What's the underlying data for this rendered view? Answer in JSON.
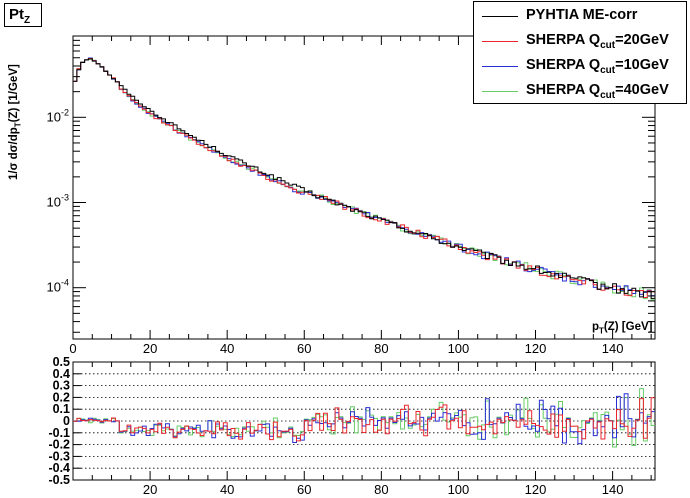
{
  "title": {
    "main": "Pt",
    "sub": "Z"
  },
  "colors": {
    "pythia": "#000000",
    "q20": "#e8262c",
    "q10": "#2a2fd4",
    "q40": "#66cc66"
  },
  "legend": [
    {
      "key": "pythia",
      "label": "PYHTIA ME-corr",
      "sub": "",
      "suffix": ""
    },
    {
      "key": "q20",
      "label": "SHERPA Q",
      "sub": "cut",
      "suffix": "=20GeV"
    },
    {
      "key": "q10",
      "label": "SHERPA Q",
      "sub": "cut",
      "suffix": "=10GeV"
    },
    {
      "key": "q40",
      "label": "SHERPA Q",
      "sub": "cut",
      "suffix": "=40GeV"
    }
  ],
  "labels": {
    "ylabel": "1/σ dσ/dp_T(Z) [1/GeV]",
    "xlabel": "p_T(Z) [GeV]"
  },
  "chart_data": [
    {
      "type": "line",
      "drawstyle": "histogram-steps",
      "yscale": "log",
      "xlim": [
        0,
        151
      ],
      "ylim": [
        2.5e-05,
        0.09
      ],
      "xticks": [
        0,
        20,
        40,
        60,
        80,
        100,
        120,
        140
      ],
      "yticks": [
        {
          "value": 0.0001,
          "base": "10",
          "exp": "-4"
        },
        {
          "value": 0.001,
          "base": "10",
          "exp": "-3"
        },
        {
          "value": 0.01,
          "base": "10",
          "exp": "-2"
        }
      ],
      "bin_width": 1,
      "shape": [
        [
          0,
          0.022
        ],
        [
          1,
          0.032
        ],
        [
          2,
          0.042
        ],
        [
          3,
          0.047
        ],
        [
          4,
          0.049
        ],
        [
          5,
          0.048
        ],
        [
          6,
          0.045
        ],
        [
          8,
          0.037
        ],
        [
          10,
          0.03
        ],
        [
          15,
          0.018
        ],
        [
          20,
          0.012
        ],
        [
          30,
          0.0063
        ],
        [
          40,
          0.0036
        ],
        [
          50,
          0.0022
        ],
        [
          60,
          0.00138
        ],
        [
          70,
          0.00092
        ],
        [
          80,
          0.00062
        ],
        [
          90,
          0.00043
        ],
        [
          100,
          0.0003
        ],
        [
          110,
          0.00022
        ],
        [
          120,
          0.000165
        ],
        [
          130,
          0.000125
        ],
        [
          140,
          0.0001
        ],
        [
          151,
          8.2e-05
        ]
      ],
      "series": [
        {
          "name": "PYHTIA ME-corr",
          "key": "pythia",
          "noise": 0.08
        },
        {
          "name": "SHERPA Qcut=20GeV",
          "key": "q20",
          "noise": 0.09
        },
        {
          "name": "SHERPA Qcut=10GeV",
          "key": "q10",
          "noise": 0.09
        },
        {
          "name": "SHERPA Qcut=40GeV",
          "key": "q40",
          "noise": 0.09
        }
      ]
    },
    {
      "type": "line",
      "drawstyle": "histogram-steps",
      "xlim": [
        0,
        151
      ],
      "ylim": [
        -0.5,
        0.5
      ],
      "xticks": [
        20,
        40,
        60,
        80,
        100,
        120,
        140
      ],
      "yticks": [
        -0.5,
        -0.4,
        -0.3,
        -0.2,
        -0.1,
        0,
        0.1,
        0.2,
        0.3,
        0.4,
        0.5
      ],
      "ytick_labels": [
        "-0.5",
        "-0.4",
        "-0.3",
        "-0.2",
        "-0.1",
        "0",
        "0.1",
        "0.2",
        "0.3",
        "0.4",
        "0.5"
      ],
      "grid": "horizontal-dotted",
      "series": [
        {
          "name": "SHERPA Qcut=20GeV",
          "key": "q20"
        },
        {
          "name": "SHERPA Qcut=10GeV",
          "key": "q10"
        },
        {
          "name": "SHERPA Qcut=40GeV",
          "key": "q40"
        }
      ]
    }
  ]
}
